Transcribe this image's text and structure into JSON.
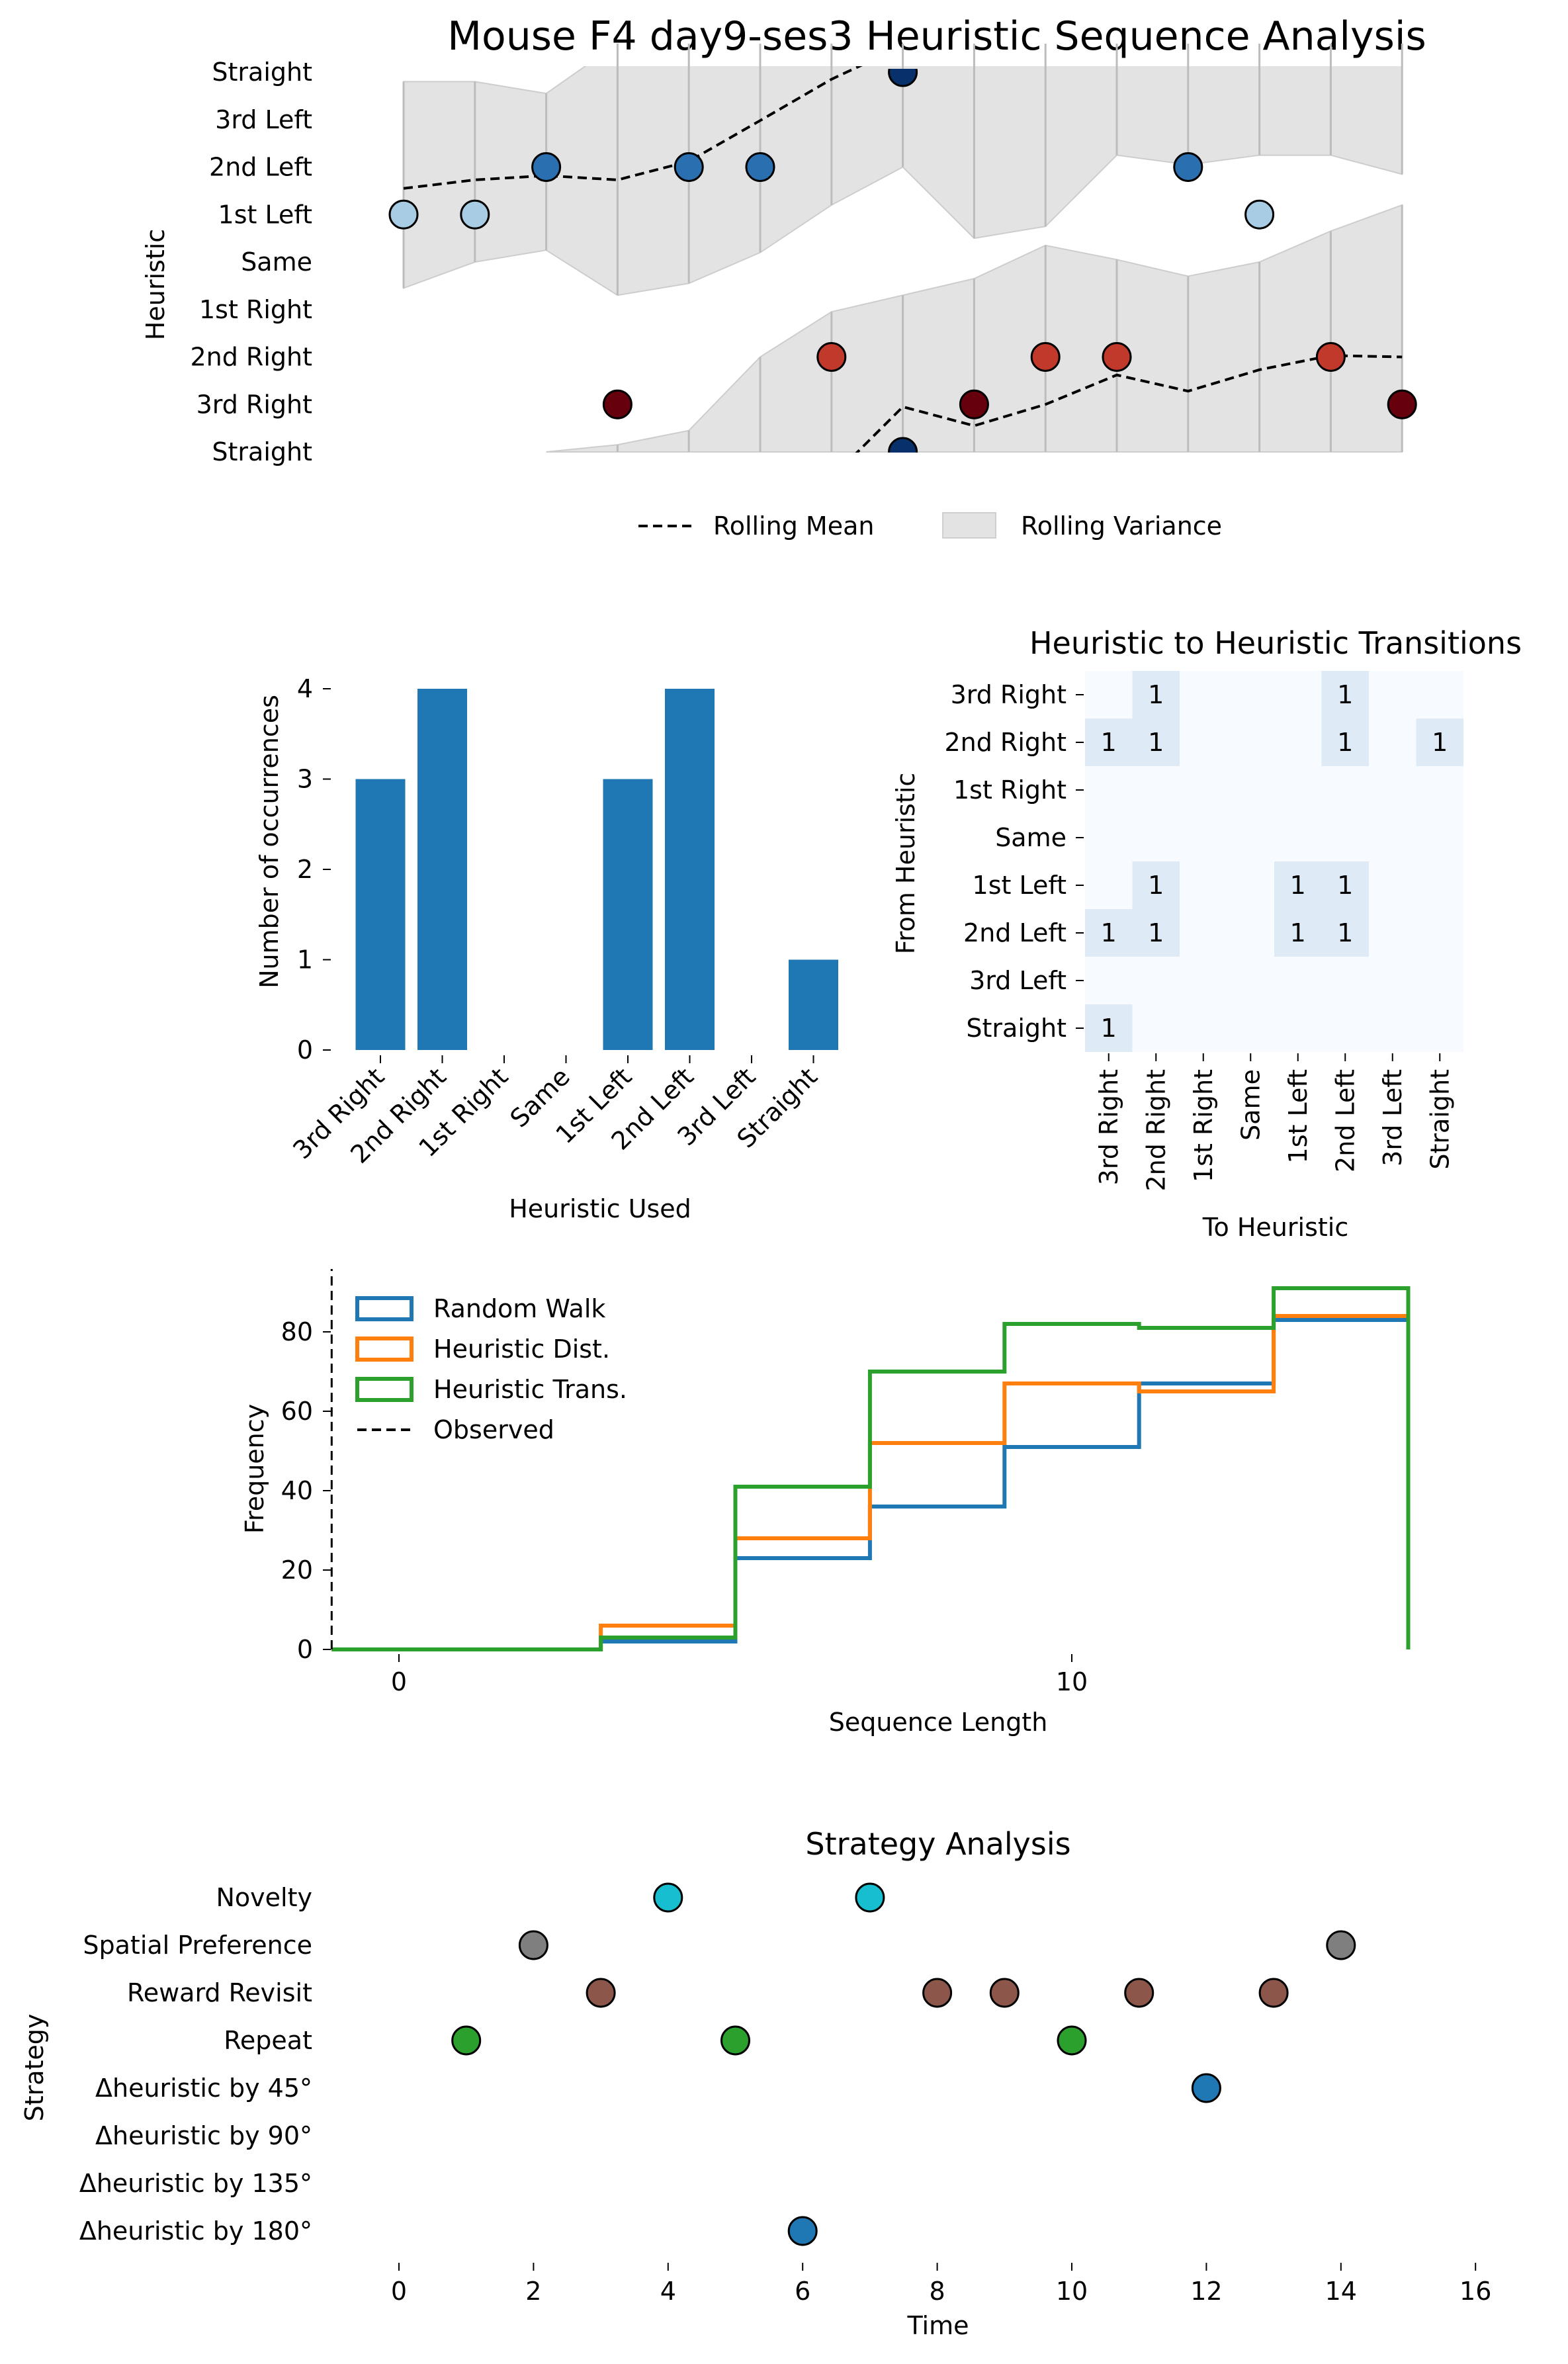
{
  "figure_title": "Mouse F4 day9-ses3 Heuristic Sequence Analysis",
  "colors": {
    "deep_blue": "#08306b",
    "blue": "#2a70b0",
    "light_blue": "#a7cce3",
    "red": "#c0392b",
    "dark_red": "#67000d",
    "variance": "#e3e3e3",
    "bar": "#1f77b4",
    "heat_low": "#f7fbff",
    "heat_one": "#deebf7",
    "c_random": "#1f77b4",
    "c_dist": "#ff7f0e",
    "c_trans": "#2ca02c",
    "novelty": "#17becf",
    "spatial": "#7f7f7f",
    "reward": "#8c564b",
    "repeat": "#2ca02c",
    "delta45": "#1f77b4",
    "delta180": "#1f77b4"
  },
  "chart_data": [
    {
      "type": "scatter",
      "ylabel": "Heuristic",
      "y_categories": [
        "Straight",
        "3rd Left",
        "2nd Left",
        "1st Left",
        "Same",
        "1st Right",
        "2nd Right",
        "3rd Right",
        "Straight"
      ],
      "x_range": [
        0,
        14
      ],
      "points": [
        {
          "t": 0,
          "h": 1
        },
        {
          "t": 1,
          "h": 1
        },
        {
          "t": 2,
          "h": 2
        },
        {
          "t": 3,
          "h": -3
        },
        {
          "t": 4,
          "h": 2
        },
        {
          "t": 5,
          "h": 2
        },
        {
          "t": 6,
          "h": -2
        },
        {
          "t": 7,
          "h": 4
        },
        {
          "t": 8,
          "h": -3
        },
        {
          "t": 9,
          "h": -2
        },
        {
          "t": 10,
          "h": -2
        },
        {
          "t": 11,
          "h": 2
        },
        {
          "t": 12,
          "h": 1
        },
        {
          "t": 13,
          "h": -2
        },
        {
          "t": 14,
          "h": -3
        }
      ],
      "rolling_mean": [
        {
          "t": 0,
          "y": 1.55
        },
        {
          "t": 1,
          "y": 1.73
        },
        {
          "t": 2,
          "y": 1.82
        },
        {
          "t": 3,
          "y": 1.73
        },
        {
          "t": 4,
          "y": 2.12
        },
        {
          "t": 5,
          "y": 2.98
        },
        {
          "t": 6,
          "y": 3.85
        },
        {
          "t": 7,
          "y": 4.55
        },
        {
          "t": 7,
          "y": -3.05
        },
        {
          "t": 8,
          "y": -3.45
        },
        {
          "t": 9,
          "y": -3.0
        },
        {
          "t": 10,
          "y": -2.38
        },
        {
          "t": 11,
          "y": -2.72
        },
        {
          "t": 12,
          "y": -2.27
        },
        {
          "t": 13,
          "y": -1.97
        },
        {
          "t": 14,
          "y": -2.0
        }
      ],
      "rolling_variance": [
        {
          "t": 0,
          "upper": 3.8,
          "lower": -0.55
        },
        {
          "t": 1,
          "upper": 3.8,
          "lower": 0.0
        },
        {
          "t": 2,
          "upper": 3.55,
          "lower": 0.25
        },
        {
          "t": 3,
          "upper": 4.6,
          "lower": -0.7
        },
        {
          "t": 4,
          "upper": 4.6,
          "lower": -0.45
        },
        {
          "t": 5,
          "upper": 4.6,
          "lower": 0.2
        },
        {
          "t": 6,
          "upper": 4.6,
          "lower": 1.2
        },
        {
          "t": 7,
          "upper": 4.6,
          "lower": 2.0
        },
        {
          "t": 8,
          "upper": 4.6,
          "lower": 0.5
        },
        {
          "t": 9,
          "upper": 4.6,
          "lower": 0.75
        },
        {
          "t": 10,
          "upper": 4.6,
          "lower": 2.25
        },
        {
          "t": 11,
          "upper": 4.6,
          "lower": 2.05
        },
        {
          "t": 12,
          "upper": 4.6,
          "lower": 2.25
        },
        {
          "t": 13,
          "upper": 4.6,
          "lower": 2.25
        },
        {
          "t": 14,
          "upper": 4.6,
          "lower": 1.85
        }
      ],
      "rolling_variance_lower_band": [
        {
          "t": 2,
          "upper": -4.0,
          "lower": -4.0
        },
        {
          "t": 3,
          "upper": -3.85,
          "lower": -4.0
        },
        {
          "t": 4,
          "upper": -3.55,
          "lower": -4.0
        },
        {
          "t": 5,
          "upper": -2.0,
          "lower": -4.0
        },
        {
          "t": 6,
          "upper": -1.05,
          "lower": -4.0
        },
        {
          "t": 7,
          "upper": -0.7,
          "lower": -4.0
        },
        {
          "t": 8,
          "upper": -0.35,
          "lower": -4.0
        },
        {
          "t": 9,
          "upper": 0.35,
          "lower": -4.0
        },
        {
          "t": 10,
          "upper": 0.05,
          "lower": -4.0
        },
        {
          "t": 11,
          "upper": -0.3,
          "lower": -4.0
        },
        {
          "t": 12,
          "upper": 0.0,
          "lower": -4.0
        },
        {
          "t": 13,
          "upper": 0.65,
          "lower": -4.0
        },
        {
          "t": 14,
          "upper": 1.2,
          "lower": -4.0
        }
      ],
      "legend": [
        "Rolling Mean",
        "Rolling Variance"
      ],
      "legend_position": "bottom-center"
    },
    {
      "type": "bar",
      "categories": [
        "3rd Right",
        "2nd Right",
        "1st Right",
        "Same",
        "1st Left",
        "2nd Left",
        "3rd Left",
        "Straight"
      ],
      "values": [
        3,
        4,
        0,
        0,
        3,
        4,
        0,
        1
      ],
      "xlabel": "Heuristic Used",
      "ylabel": "Number of occurrences",
      "ylim": [
        0,
        4
      ],
      "yticks": [
        "0",
        "1",
        "2",
        "3",
        "4"
      ]
    },
    {
      "type": "heatmap",
      "title": "Heuristic to Heuristic Transitions",
      "xlabel": "To Heuristic",
      "ylabel": "From Heuristic",
      "x_categories": [
        "3rd Right",
        "2nd Right",
        "1st Right",
        "Same",
        "1st Left",
        "2nd Left",
        "3rd Left",
        "Straight"
      ],
      "y_categories": [
        "3rd Right",
        "2nd Right",
        "1st Right",
        "Same",
        "1st Left",
        "2nd Left",
        "3rd Left",
        "Straight"
      ],
      "matrix": [
        [
          0,
          1,
          0,
          0,
          0,
          1,
          0,
          0
        ],
        [
          1,
          1,
          0,
          0,
          0,
          1,
          0,
          1
        ],
        [
          0,
          0,
          0,
          0,
          0,
          0,
          0,
          0
        ],
        [
          0,
          0,
          0,
          0,
          0,
          0,
          0,
          0
        ],
        [
          0,
          1,
          0,
          0,
          1,
          1,
          0,
          0
        ],
        [
          1,
          1,
          0,
          0,
          1,
          1,
          0,
          0
        ],
        [
          0,
          0,
          0,
          0,
          0,
          0,
          0,
          0
        ],
        [
          1,
          0,
          0,
          0,
          0,
          0,
          0,
          0
        ]
      ]
    },
    {
      "type": "line",
      "xlabel": "Sequence Length",
      "ylabel": "Frequency",
      "xlim": [
        -1,
        15
      ],
      "ylim": [
        0,
        95
      ],
      "xticks": [
        "0",
        "10"
      ],
      "yticks": [
        "0",
        "20",
        "40",
        "60",
        "80"
      ],
      "bin_edges": [
        3,
        5,
        7,
        9,
        11,
        13,
        15
      ],
      "series": [
        {
          "name": "Random Walk",
          "values": [
            2,
            23,
            36,
            51,
            67,
            83
          ]
        },
        {
          "name": "Heuristic Dist.",
          "values": [
            6,
            28,
            52,
            67,
            65,
            84
          ]
        },
        {
          "name": "Heuristic Trans.",
          "values": [
            3,
            41,
            70,
            82,
            81,
            91
          ]
        }
      ],
      "observed": {
        "name": "Observed",
        "x": -1
      },
      "legend_position": "top-left"
    },
    {
      "type": "scatter",
      "title": "Strategy Analysis",
      "xlabel": "Time",
      "ylabel": "Strategy",
      "xlim": [
        0,
        16
      ],
      "xticks": [
        "0",
        "2",
        "4",
        "6",
        "8",
        "10",
        "12",
        "14",
        "16"
      ],
      "y_categories": [
        "Novelty",
        "Spatial Preference",
        "Reward Revisit",
        "Repeat",
        "Δheuristic by 45°",
        "Δheuristic by 90°",
        "Δheuristic by 135°",
        "Δheuristic by 180°"
      ],
      "points": [
        {
          "t": 4,
          "strategy": "Novelty"
        },
        {
          "t": 7,
          "strategy": "Novelty"
        },
        {
          "t": 2,
          "strategy": "Spatial Preference"
        },
        {
          "t": 14,
          "strategy": "Spatial Preference"
        },
        {
          "t": 3,
          "strategy": "Reward Revisit"
        },
        {
          "t": 8,
          "strategy": "Reward Revisit"
        },
        {
          "t": 9,
          "strategy": "Reward Revisit"
        },
        {
          "t": 11,
          "strategy": "Reward Revisit"
        },
        {
          "t": 13,
          "strategy": "Reward Revisit"
        },
        {
          "t": 1,
          "strategy": "Repeat"
        },
        {
          "t": 5,
          "strategy": "Repeat"
        },
        {
          "t": 10,
          "strategy": "Repeat"
        },
        {
          "t": 12,
          "strategy": "Δheuristic by 45°"
        },
        {
          "t": 6,
          "strategy": "Δheuristic by 180°"
        }
      ]
    }
  ]
}
